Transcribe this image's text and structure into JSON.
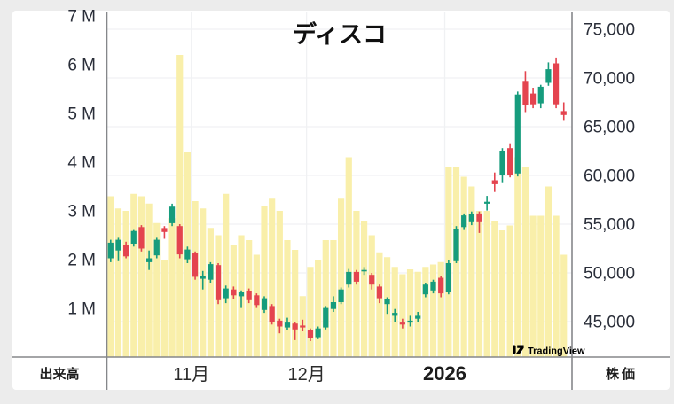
{
  "watermark": {
    "logo_icon": "tradingview-logo",
    "brand": "TradingView"
  },
  "chart_data": {
    "type": "candlestick_with_volume",
    "title": "ディスコ",
    "legend_position": "none",
    "grid": "on",
    "volume_axis": {
      "name": "出来高",
      "unit": "M",
      "side": "left",
      "ticks": [
        "7 M",
        "6 M",
        "5 M",
        "4 M",
        "3 M",
        "2 M",
        "1 M"
      ],
      "tick_values_millions": [
        7,
        6,
        5,
        4,
        3,
        2,
        1
      ],
      "range_millions": [
        0,
        7.1
      ]
    },
    "price_axis": {
      "name": "株価",
      "side": "right",
      "ticks": [
        "75,000",
        "70,000",
        "65,000",
        "60,000",
        "55,000",
        "50,000",
        "45,000"
      ],
      "tick_values": [
        75000,
        70000,
        65000,
        60000,
        55000,
        50000,
        45000
      ],
      "range": [
        43300,
        76700
      ]
    },
    "x_axis": {
      "labels": [
        {
          "text": "11月",
          "bar_index": 11,
          "bold": false
        },
        {
          "text": "12月",
          "bar_index": 26,
          "bold": false
        },
        {
          "text": "2026",
          "bar_index": 44,
          "bold": true
        }
      ]
    },
    "colors": {
      "up": "#169c7d",
      "down": "#e4444f",
      "volume": "#f9efaa",
      "grid": "#f0f1f3",
      "axis_line": "#85878a",
      "text": "#2a2e39",
      "background": "#ffffff",
      "page_background": "#ececec"
    },
    "bars": {
      "columns": [
        "open",
        "high",
        "low",
        "close",
        "volume_millions"
      ],
      "rows": [
        [
          51500,
          53400,
          51100,
          53100,
          3.3
        ],
        [
          52300,
          53600,
          51200,
          53400,
          3.05
        ],
        [
          52900,
          53200,
          51500,
          51700,
          3.0
        ],
        [
          53000,
          54400,
          52700,
          54300,
          3.35
        ],
        [
          54700,
          54900,
          52200,
          52500,
          3.3
        ],
        [
          51100,
          52300,
          50300,
          51500,
          3.15
        ],
        [
          51800,
          53600,
          51500,
          53400,
          2.75
        ],
        [
          54600,
          54800,
          53500,
          54200,
          2.0
        ],
        [
          55100,
          57100,
          54800,
          56800,
          2.85
        ],
        [
          54800,
          55000,
          51500,
          51900,
          6.2
        ],
        [
          51400,
          52700,
          51000,
          52400,
          4.2
        ],
        [
          52000,
          52200,
          49300,
          49600,
          3.2
        ],
        [
          49400,
          50200,
          48300,
          49700,
          3.05
        ],
        [
          49300,
          51100,
          49000,
          50900,
          2.65
        ],
        [
          50800,
          51000,
          46800,
          47200,
          2.5
        ],
        [
          47400,
          48700,
          46900,
          48400,
          3.35
        ],
        [
          48300,
          48600,
          47300,
          47700,
          2.3
        ],
        [
          47600,
          48200,
          46400,
          48000,
          2.5
        ],
        [
          48100,
          48400,
          46900,
          47200,
          2.4
        ],
        [
          47700,
          47900,
          46400,
          46700,
          2.1
        ],
        [
          46200,
          47600,
          45900,
          47400,
          3.1
        ],
        [
          46600,
          46800,
          44700,
          45000,
          3.25
        ],
        [
          45100,
          45300,
          43800,
          44500,
          3.0
        ],
        [
          44400,
          45400,
          44100,
          44900,
          2.4
        ],
        [
          44800,
          45000,
          43100,
          44200,
          2.2
        ],
        [
          44600,
          45200,
          44000,
          44400,
          1.25
        ],
        [
          44100,
          44300,
          43000,
          43300,
          1.85
        ],
        [
          43400,
          44500,
          43200,
          44300,
          2.0
        ],
        [
          44400,
          46600,
          44200,
          46400,
          2.4
        ],
        [
          46300,
          47600,
          46000,
          47000,
          2.4
        ],
        [
          47000,
          48500,
          46800,
          48300,
          3.25
        ],
        [
          48800,
          50400,
          48500,
          50100,
          4.1
        ],
        [
          50100,
          50300,
          48800,
          49100,
          3.0
        ],
        [
          50200,
          50600,
          49800,
          50300,
          2.8
        ],
        [
          49800,
          50000,
          48300,
          48800,
          2.5
        ],
        [
          48600,
          48800,
          46900,
          47400,
          2.15
        ],
        [
          46800,
          47500,
          45800,
          47300,
          2.05
        ],
        [
          45600,
          46300,
          45000,
          45900,
          1.85
        ],
        [
          44900,
          45300,
          44300,
          44700,
          1.7
        ],
        [
          44900,
          45600,
          44500,
          45100,
          1.8
        ],
        [
          45300,
          46000,
          45000,
          45600,
          1.75
        ],
        [
          47800,
          49000,
          47500,
          48800,
          1.85
        ],
        [
          48200,
          49300,
          47900,
          49100,
          1.9
        ],
        [
          49500,
          49700,
          47500,
          47900,
          1.95
        ],
        [
          48000,
          51300,
          47800,
          51000,
          3.9
        ],
        [
          51200,
          54800,
          51000,
          54500,
          3.9
        ],
        [
          54700,
          56100,
          54400,
          55900,
          3.7
        ],
        [
          55200,
          56300,
          54900,
          56000,
          3.5
        ],
        [
          56100,
          56300,
          54100,
          55200,
          3.0
        ],
        [
          57100,
          57900,
          56400,
          57300,
          3.0
        ],
        [
          59500,
          60300,
          58300,
          59100,
          2.8
        ],
        [
          60000,
          62800,
          59300,
          62500,
          2.6
        ],
        [
          62800,
          63300,
          59800,
          60000,
          2.7
        ],
        [
          60200,
          68600,
          59900,
          68300,
          4.1
        ],
        [
          69700,
          70700,
          66500,
          67200,
          3.9
        ],
        [
          68400,
          69000,
          66900,
          67300,
          2.9
        ],
        [
          67400,
          69300,
          66900,
          69100,
          2.9
        ],
        [
          69500,
          71600,
          69200,
          70900,
          3.5
        ],
        [
          71500,
          72100,
          66900,
          67300,
          2.9
        ],
        [
          66600,
          67500,
          65600,
          66200,
          2.1
        ]
      ]
    }
  }
}
